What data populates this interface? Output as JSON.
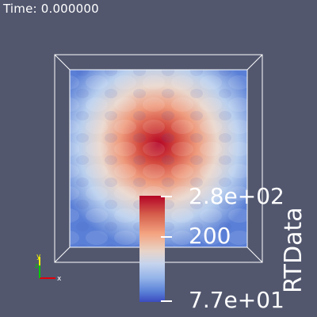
{
  "time_label": "Time: 0.000000",
  "scalar_bar": {
    "title": "RTData",
    "labels": [
      "2.8e+02",
      "200",
      "7.7e+01"
    ],
    "range": [
      77,
      280
    ],
    "colors": {
      "max": "#b40426",
      "mid": "#dddcdc",
      "min": "#3b4cc0"
    }
  },
  "orientation_axes": [
    "x",
    "y",
    "z"
  ],
  "colors": {
    "background": "#52576e",
    "outline": "#ffffff",
    "axis_x": "#e0000a",
    "axis_y": "#f0f000",
    "axis_z": "#00c800"
  }
}
